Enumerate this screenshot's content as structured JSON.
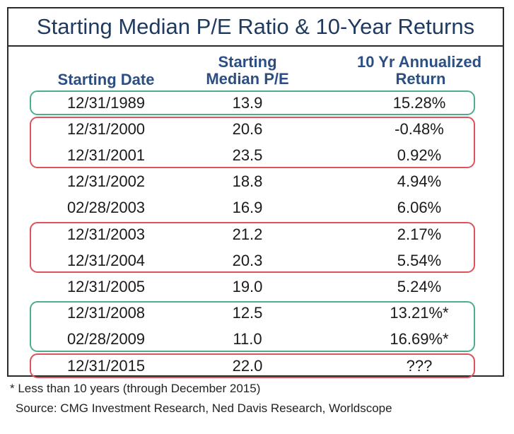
{
  "title": "Starting Median P/E Ratio & 10-Year Returns",
  "chart_data": {
    "type": "table",
    "columns": [
      "Starting Date",
      "Starting Median P/E",
      "10 Yr Annualized Return"
    ],
    "rows": [
      {
        "date": "12/31/1989",
        "pe": "13.9",
        "ret": "15.28%"
      },
      {
        "date": "12/31/2000",
        "pe": "20.6",
        "ret": "-0.48%"
      },
      {
        "date": "12/31/2001",
        "pe": "23.5",
        "ret": "0.92%"
      },
      {
        "date": "12/31/2002",
        "pe": "18.8",
        "ret": "4.94%"
      },
      {
        "date": "02/28/2003",
        "pe": "16.9",
        "ret": "6.06%"
      },
      {
        "date": "12/31/2003",
        "pe": "21.2",
        "ret": "2.17%"
      },
      {
        "date": "12/31/2004",
        "pe": "20.3",
        "ret": "5.54%"
      },
      {
        "date": "12/31/2005",
        "pe": "19.0",
        "ret": "5.24%"
      },
      {
        "date": "12/31/2008",
        "pe": "12.5",
        "ret": "13.21%*"
      },
      {
        "date": "02/28/2009",
        "pe": "11.0",
        "ret": "16.69%*"
      },
      {
        "date": "12/31/2015",
        "pe": "22.0",
        "ret": "???"
      }
    ],
    "highlight_groups": [
      {
        "rows": [
          0
        ],
        "color": "#4cae8a"
      },
      {
        "rows": [
          1,
          2
        ],
        "color": "#e0525a"
      },
      {
        "rows": [
          5,
          6
        ],
        "color": "#e0525a"
      },
      {
        "rows": [
          8,
          9
        ],
        "color": "#4cae8a"
      },
      {
        "rows": [
          10
        ],
        "color": "#e0525a"
      }
    ]
  },
  "header": {
    "date": "Starting Date",
    "pe_line1": "Starting",
    "pe_line2": "Median P/E",
    "ret_line1": "10 Yr Annualized",
    "ret_line2": "Return"
  },
  "footnote": "* Less than 10 years (through December 2015)",
  "source": "Source: CMG Investment Research, Ned Davis Research, Worldscope"
}
